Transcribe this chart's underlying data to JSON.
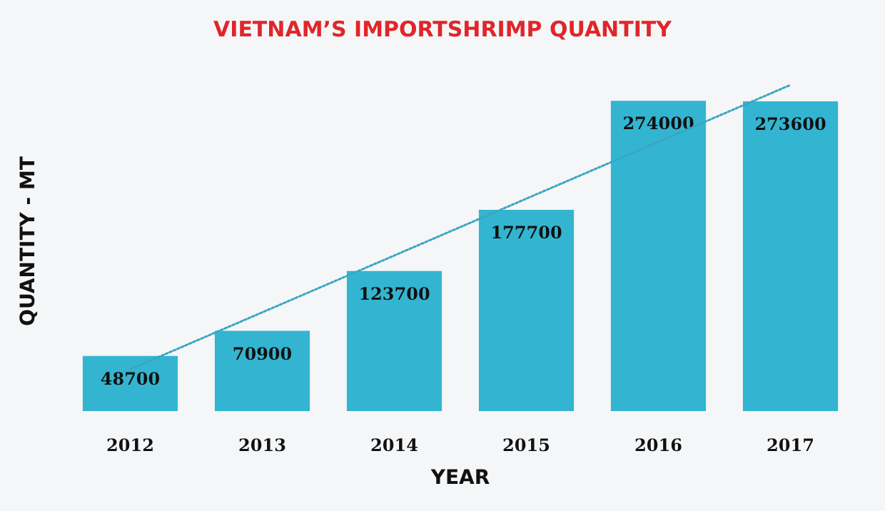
{
  "chart_data": {
    "type": "bar",
    "title": "VIETNAM’S IMPORTSHRIMP QUANTITY",
    "xlabel": "YEAR",
    "ylabel": "QUANTITY - MT",
    "categories": [
      "2012",
      "2013",
      "2014",
      "2015",
      "2016",
      "2017"
    ],
    "series": [
      {
        "color": "#33b5d1",
        "values": [
          48700,
          70900,
          123700,
          177700,
          274000,
          273600
        ],
        "value_labels": [
          "48700",
          "70900",
          "123700",
          "177700",
          "274000",
          "273600"
        ]
      },
      {
        "type": "line",
        "color": "#3aa6c4",
        "line_style": "dotted",
        "marker": "none",
        "values": [
          37000,
          null,
          null,
          null,
          null,
          288000
        ]
      }
    ]
  }
}
